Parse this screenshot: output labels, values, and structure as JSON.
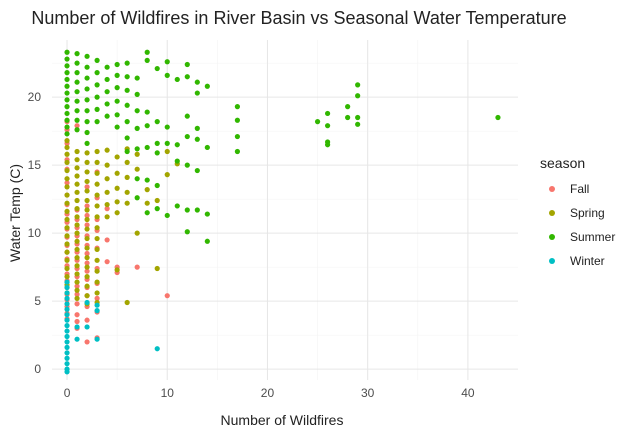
{
  "chart_data": {
    "type": "scatter",
    "title": "Number of Wildfires in River Basin vs Seasonal Water Temperature",
    "xlabel": "Number of Wildfires",
    "ylabel": "Water Temp (C)",
    "xlim": [
      -1.5,
      45
    ],
    "ylim": [
      -0.8,
      24.2
    ],
    "x_ticks": [
      0,
      10,
      20,
      30,
      40
    ],
    "y_ticks": [
      0,
      5,
      10,
      15,
      20
    ],
    "grid": true,
    "legend_title": "season",
    "legend_position": "right",
    "series": [
      {
        "name": "Fall",
        "color": "#F8766D",
        "points": [
          [
            0,
            18.2
          ],
          [
            0,
            17.6
          ],
          [
            0,
            16.6
          ],
          [
            0,
            15.4
          ],
          [
            0,
            14.7
          ],
          [
            0,
            13.7
          ],
          [
            0,
            12.8
          ],
          [
            0,
            12.1
          ],
          [
            0,
            11.4
          ],
          [
            0,
            10.8
          ],
          [
            0,
            10.3
          ],
          [
            0,
            9.7
          ],
          [
            0,
            9.1
          ],
          [
            0,
            8.6
          ],
          [
            0,
            8.1
          ],
          [
            0,
            7.6
          ],
          [
            0,
            7.0
          ],
          [
            0,
            6.5
          ],
          [
            0,
            6.0
          ],
          [
            0,
            5.5
          ],
          [
            0,
            5.1
          ],
          [
            0,
            4.6
          ],
          [
            0,
            4.1
          ],
          [
            0,
            3.7
          ],
          [
            1,
            17.9
          ],
          [
            1,
            11.7
          ],
          [
            1,
            11.0
          ],
          [
            1,
            10.4
          ],
          [
            1,
            9.8
          ],
          [
            1,
            9.2
          ],
          [
            1,
            8.6
          ],
          [
            1,
            8.0
          ],
          [
            1,
            7.4
          ],
          [
            1,
            6.8
          ],
          [
            1,
            6.1
          ],
          [
            1,
            5.5
          ],
          [
            1,
            4.8
          ],
          [
            1,
            4.0
          ],
          [
            1,
            3.5
          ],
          [
            1,
            3.0
          ],
          [
            2,
            13.4
          ],
          [
            2,
            12.0
          ],
          [
            2,
            11.3
          ],
          [
            2,
            10.6
          ],
          [
            2,
            9.8
          ],
          [
            2,
            9.1
          ],
          [
            2,
            8.5
          ],
          [
            2,
            7.8
          ],
          [
            2,
            7.2
          ],
          [
            2,
            6.6
          ],
          [
            2,
            6.0
          ],
          [
            2,
            5.4
          ],
          [
            2,
            4.6
          ],
          [
            2,
            3.6
          ],
          [
            2,
            2.0
          ],
          [
            3,
            14.5
          ],
          [
            3,
            12.6
          ],
          [
            3,
            11.0
          ],
          [
            3,
            10.2
          ],
          [
            3,
            8.9
          ],
          [
            3,
            7.4
          ],
          [
            3,
            6.3
          ],
          [
            3,
            5.2
          ],
          [
            3,
            4.2
          ],
          [
            3,
            2.3
          ],
          [
            4,
            11.8
          ],
          [
            4,
            9.5
          ],
          [
            4,
            7.9
          ],
          [
            5,
            7.5
          ],
          [
            5,
            7.1
          ],
          [
            7,
            7.5
          ],
          [
            10,
            5.4
          ]
        ]
      },
      {
        "name": "Spring",
        "color": "#A3A500",
        "points": [
          [
            0,
            16.8
          ],
          [
            0,
            16.3
          ],
          [
            0,
            15.8
          ],
          [
            0,
            15.2
          ],
          [
            0,
            14.6
          ],
          [
            0,
            14.0
          ],
          [
            0,
            13.4
          ],
          [
            0,
            12.8
          ],
          [
            0,
            12.2
          ],
          [
            0,
            11.6
          ],
          [
            0,
            11.0
          ],
          [
            0,
            10.4
          ],
          [
            0,
            9.8
          ],
          [
            0,
            9.2
          ],
          [
            0,
            8.6
          ],
          [
            0,
            8.0
          ],
          [
            0,
            7.4
          ],
          [
            0,
            6.8
          ],
          [
            0,
            6.2
          ],
          [
            0,
            5.6
          ],
          [
            1,
            16.0
          ],
          [
            1,
            15.4
          ],
          [
            1,
            14.8
          ],
          [
            1,
            14.2
          ],
          [
            1,
            13.6
          ],
          [
            1,
            13.0
          ],
          [
            1,
            12.4
          ],
          [
            1,
            11.8
          ],
          [
            1,
            11.2
          ],
          [
            1,
            10.6
          ],
          [
            1,
            10.0
          ],
          [
            1,
            9.4
          ],
          [
            1,
            8.8
          ],
          [
            1,
            8.2
          ],
          [
            1,
            7.6
          ],
          [
            1,
            7.0
          ],
          [
            1,
            6.4
          ],
          [
            1,
            5.8
          ],
          [
            1,
            5.2
          ],
          [
            2,
            15.9
          ],
          [
            2,
            15.2
          ],
          [
            2,
            14.5
          ],
          [
            2,
            13.8
          ],
          [
            2,
            13.1
          ],
          [
            2,
            12.4
          ],
          [
            2,
            11.7
          ],
          [
            2,
            11.0
          ],
          [
            2,
            10.3
          ],
          [
            2,
            9.6
          ],
          [
            2,
            8.9
          ],
          [
            2,
            8.2
          ],
          [
            2,
            7.5
          ],
          [
            2,
            6.8
          ],
          [
            2,
            6.1
          ],
          [
            2,
            5.4
          ],
          [
            2,
            4.8
          ],
          [
            3,
            16.0
          ],
          [
            3,
            15.2
          ],
          [
            3,
            14.4
          ],
          [
            3,
            13.6
          ],
          [
            3,
            12.8
          ],
          [
            3,
            12.0
          ],
          [
            3,
            11.2
          ],
          [
            3,
            10.4
          ],
          [
            3,
            9.6
          ],
          [
            3,
            8.8
          ],
          [
            3,
            8.0
          ],
          [
            3,
            7.2
          ],
          [
            3,
            6.4
          ],
          [
            3,
            5.6
          ],
          [
            3,
            4.9
          ],
          [
            4,
            16.1
          ],
          [
            4,
            15.0
          ],
          [
            4,
            14.0
          ],
          [
            4,
            13.0
          ],
          [
            4,
            12.1
          ],
          [
            4,
            11.2
          ],
          [
            5,
            15.6
          ],
          [
            5,
            14.4
          ],
          [
            5,
            13.3
          ],
          [
            5,
            12.3
          ],
          [
            5,
            11.5
          ],
          [
            5,
            7.3
          ],
          [
            6,
            16.2
          ],
          [
            6,
            15.2
          ],
          [
            6,
            14.1
          ],
          [
            6,
            13.0
          ],
          [
            6,
            12.2
          ],
          [
            6,
            4.9
          ],
          [
            7,
            15.8
          ],
          [
            7,
            14.7
          ],
          [
            7,
            10.0
          ],
          [
            8,
            13.2
          ],
          [
            8,
            12.2
          ],
          [
            9,
            7.4
          ],
          [
            9,
            12.4
          ],
          [
            10,
            16.0
          ],
          [
            10,
            14.3
          ],
          [
            11,
            15.1
          ]
        ]
      },
      {
        "name": "Summer",
        "color": "#31B700",
        "points": [
          [
            0,
            23.3
          ],
          [
            0,
            22.8
          ],
          [
            0,
            22.3
          ],
          [
            0,
            21.8
          ],
          [
            0,
            21.3
          ],
          [
            0,
            20.8
          ],
          [
            0,
            20.3
          ],
          [
            0,
            19.8
          ],
          [
            0,
            19.3
          ],
          [
            0,
            18.8
          ],
          [
            0,
            18.3
          ],
          [
            0,
            17.8
          ],
          [
            0,
            17.3
          ],
          [
            1,
            23.2
          ],
          [
            1,
            22.5
          ],
          [
            1,
            21.8
          ],
          [
            1,
            21.1
          ],
          [
            1,
            20.4
          ],
          [
            1,
            19.7
          ],
          [
            1,
            19.0
          ],
          [
            1,
            18.3
          ],
          [
            1,
            17.6
          ],
          [
            2,
            23.0
          ],
          [
            2,
            22.2
          ],
          [
            2,
            21.4
          ],
          [
            2,
            20.6
          ],
          [
            2,
            19.8
          ],
          [
            2,
            19.0
          ],
          [
            2,
            18.2
          ],
          [
            2,
            17.4
          ],
          [
            2,
            16.6
          ],
          [
            3,
            22.7
          ],
          [
            3,
            21.8
          ],
          [
            3,
            20.9
          ],
          [
            3,
            20.0
          ],
          [
            3,
            19.1
          ],
          [
            3,
            18.2
          ],
          [
            4,
            22.2
          ],
          [
            4,
            21.3
          ],
          [
            4,
            20.4
          ],
          [
            4,
            19.5
          ],
          [
            4,
            18.6
          ],
          [
            5,
            22.4
          ],
          [
            5,
            21.6
          ],
          [
            5,
            20.7
          ],
          [
            5,
            19.7
          ],
          [
            5,
            18.7
          ],
          [
            5,
            17.8
          ],
          [
            6,
            22.5
          ],
          [
            6,
            21.5
          ],
          [
            6,
            20.5
          ],
          [
            6,
            19.4
          ],
          [
            6,
            18.2
          ],
          [
            6,
            17.0
          ],
          [
            6,
            16.0
          ],
          [
            7,
            21.4
          ],
          [
            7,
            20.2
          ],
          [
            7,
            19.0
          ],
          [
            7,
            17.7
          ],
          [
            7,
            16.2
          ],
          [
            7,
            14.0
          ],
          [
            7,
            12.6
          ],
          [
            8,
            23.3
          ],
          [
            8,
            22.7
          ],
          [
            8,
            18.9
          ],
          [
            8,
            17.9
          ],
          [
            8,
            16.3
          ],
          [
            8,
            13.9
          ],
          [
            8,
            11.5
          ],
          [
            9,
            22.1
          ],
          [
            9,
            18.2
          ],
          [
            9,
            16.6
          ],
          [
            9,
            15.9
          ],
          [
            9,
            13.5
          ],
          [
            9,
            11.8
          ],
          [
            10,
            22.6
          ],
          [
            10,
            21.6
          ],
          [
            10,
            17.8
          ],
          [
            10,
            16.6
          ],
          [
            10,
            11.3
          ],
          [
            11,
            21.3
          ],
          [
            11,
            16.5
          ],
          [
            11,
            15.3
          ],
          [
            11,
            12.0
          ],
          [
            12,
            22.4
          ],
          [
            12,
            21.5
          ],
          [
            12,
            18.6
          ],
          [
            12,
            17.1
          ],
          [
            12,
            15.0
          ],
          [
            12,
            11.7
          ],
          [
            12,
            10.1
          ],
          [
            13,
            21.1
          ],
          [
            13,
            20.3
          ],
          [
            13,
            17.7
          ],
          [
            13,
            16.9
          ],
          [
            13,
            14.6
          ],
          [
            13,
            11.7
          ],
          [
            14,
            20.8
          ],
          [
            14,
            16.3
          ],
          [
            14,
            11.4
          ],
          [
            14,
            9.4
          ],
          [
            17,
            19.3
          ],
          [
            17,
            18.3
          ],
          [
            17,
            17.1
          ],
          [
            17,
            16.0
          ],
          [
            25,
            18.2
          ],
          [
            26,
            18.8
          ],
          [
            26,
            17.9
          ],
          [
            26,
            16.7
          ],
          [
            26,
            16.5
          ],
          [
            28,
            19.3
          ],
          [
            28,
            18.5
          ],
          [
            29,
            20.9
          ],
          [
            29,
            20.1
          ],
          [
            29,
            18.5
          ],
          [
            29,
            18.0
          ],
          [
            43,
            18.5
          ]
        ]
      },
      {
        "name": "Winter",
        "color": "#00BFC4",
        "points": [
          [
            0,
            6.4
          ],
          [
            0,
            6.0
          ],
          [
            0,
            5.6
          ],
          [
            0,
            5.2
          ],
          [
            0,
            4.8
          ],
          [
            0,
            4.4
          ],
          [
            0,
            4.0
          ],
          [
            0,
            3.6
          ],
          [
            0,
            3.2
          ],
          [
            0,
            2.8
          ],
          [
            0,
            2.4
          ],
          [
            0,
            2.0
          ],
          [
            0,
            1.6
          ],
          [
            0,
            1.2
          ],
          [
            0,
            0.8
          ],
          [
            0,
            0.4
          ],
          [
            0,
            0.0
          ],
          [
            0,
            -0.2
          ],
          [
            1,
            3.1
          ],
          [
            1,
            2.2
          ],
          [
            2,
            4.9
          ],
          [
            2,
            3.1
          ],
          [
            3,
            4.7
          ],
          [
            3,
            4.3
          ],
          [
            3,
            2.2
          ],
          [
            9,
            1.5
          ]
        ]
      }
    ]
  }
}
